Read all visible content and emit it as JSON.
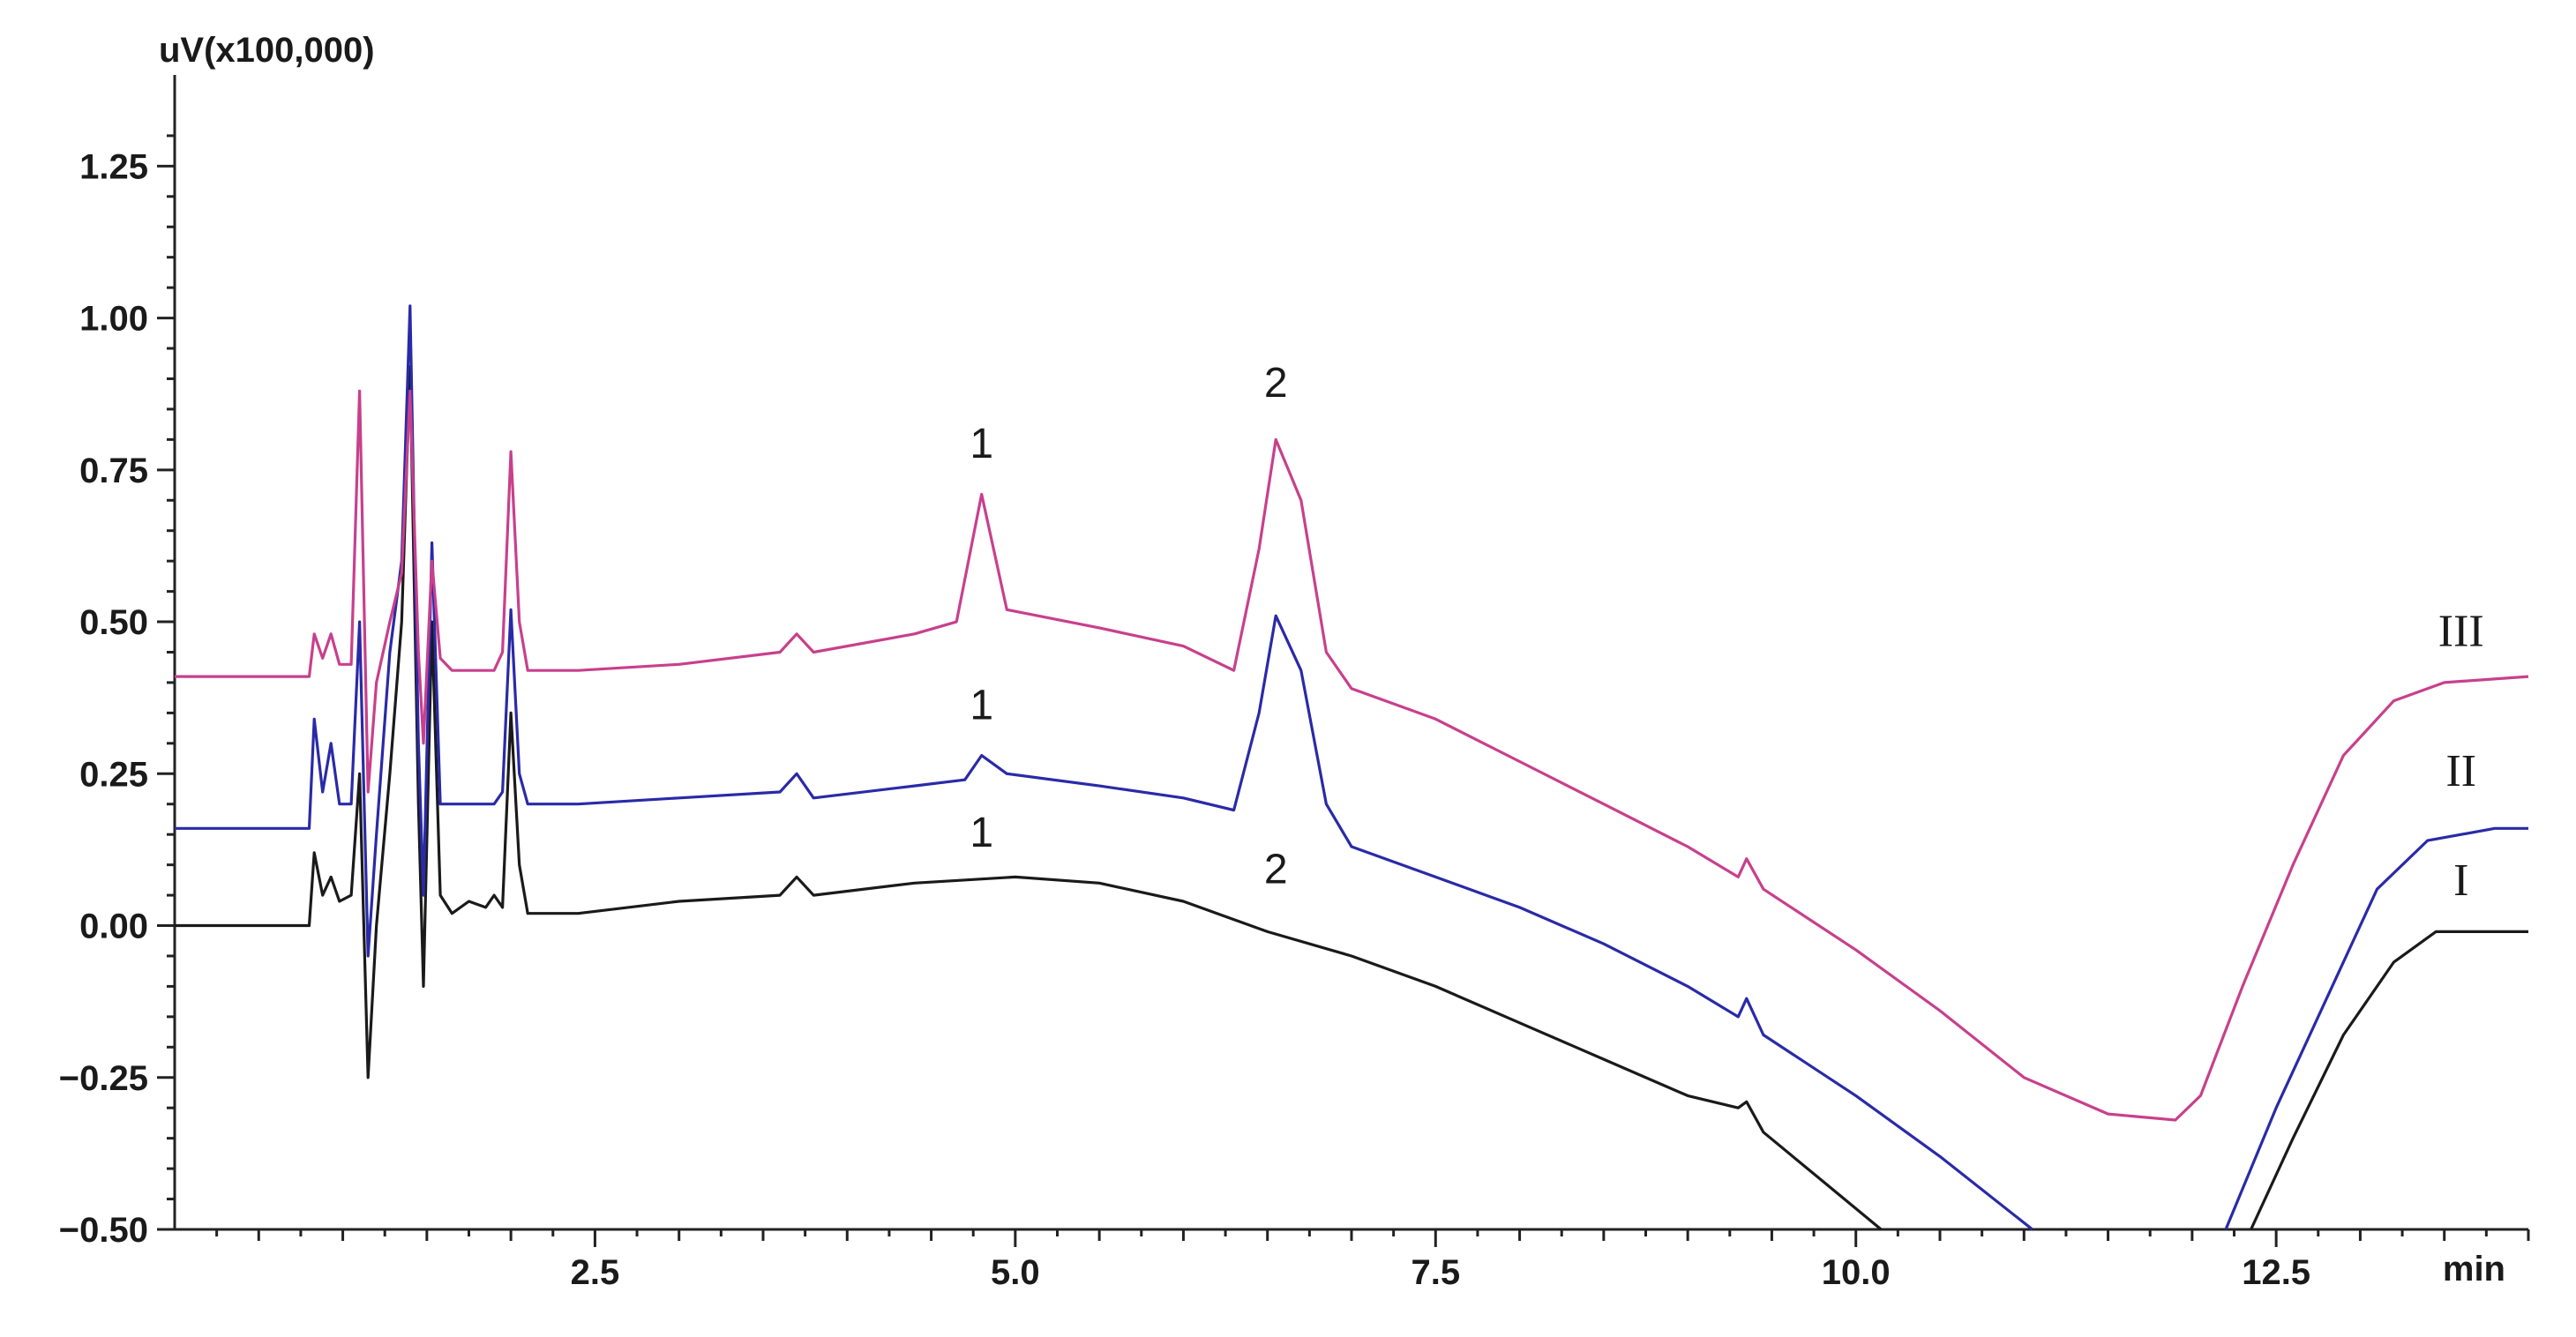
{
  "chart_data": {
    "type": "line",
    "title": "",
    "ylabel": "uV(x100,000)",
    "xlabel": "min",
    "xlim": [
      0,
      14.0
    ],
    "ylim": [
      -0.5,
      1.4
    ],
    "x_ticks": [
      2.5,
      5.0,
      7.5,
      10.0,
      12.5
    ],
    "x_tick_labels": [
      "2.5",
      "5.0",
      "7.5",
      "10.0",
      "12.5"
    ],
    "y_ticks": [
      1.25,
      1.0,
      0.75,
      0.5,
      0.25,
      0.0,
      -0.25,
      -0.5
    ],
    "y_tick_labels": [
      "1.25",
      "1.00",
      "0.75",
      "0.50",
      "0.25",
      "0.00",
      "−0.25",
      "−0.50"
    ],
    "grid": false,
    "series": [
      {
        "name": "I",
        "color": "#1a1a1a",
        "points": [
          [
            0.0,
            0.0
          ],
          [
            0.8,
            0.0
          ],
          [
            0.83,
            0.12
          ],
          [
            0.88,
            0.05
          ],
          [
            0.93,
            0.08
          ],
          [
            0.98,
            0.04
          ],
          [
            1.05,
            0.05
          ],
          [
            1.1,
            0.25
          ],
          [
            1.15,
            -0.25
          ],
          [
            1.2,
            0.0
          ],
          [
            1.28,
            0.25
          ],
          [
            1.35,
            0.5
          ],
          [
            1.4,
            0.92
          ],
          [
            1.45,
            0.2
          ],
          [
            1.48,
            -0.1
          ],
          [
            1.53,
            0.5
          ],
          [
            1.58,
            0.05
          ],
          [
            1.65,
            0.02
          ],
          [
            1.75,
            0.04
          ],
          [
            1.85,
            0.03
          ],
          [
            1.9,
            0.05
          ],
          [
            1.95,
            0.03
          ],
          [
            2.0,
            0.35
          ],
          [
            2.05,
            0.1
          ],
          [
            2.1,
            0.02
          ],
          [
            2.4,
            0.02
          ],
          [
            3.0,
            0.04
          ],
          [
            3.6,
            0.05
          ],
          [
            3.7,
            0.08
          ],
          [
            3.8,
            0.05
          ],
          [
            4.4,
            0.07
          ],
          [
            5.0,
            0.08
          ],
          [
            5.5,
            0.07
          ],
          [
            6.0,
            0.04
          ],
          [
            6.5,
            -0.01
          ],
          [
            7.0,
            -0.05
          ],
          [
            7.5,
            -0.1
          ],
          [
            8.0,
            -0.16
          ],
          [
            8.5,
            -0.22
          ],
          [
            9.0,
            -0.28
          ],
          [
            9.3,
            -0.3
          ],
          [
            9.35,
            -0.29
          ],
          [
            9.45,
            -0.34
          ],
          [
            9.8,
            -0.42
          ],
          [
            10.15,
            -0.5
          ],
          null,
          [
            12.35,
            -0.5
          ],
          [
            12.6,
            -0.35
          ],
          [
            12.9,
            -0.18
          ],
          [
            13.2,
            -0.06
          ],
          [
            13.45,
            -0.01
          ],
          [
            14.0,
            -0.01
          ]
        ]
      },
      {
        "name": "II",
        "color": "#2a2aa8",
        "points": [
          [
            0.0,
            0.16
          ],
          [
            0.8,
            0.16
          ],
          [
            0.83,
            0.34
          ],
          [
            0.88,
            0.22
          ],
          [
            0.93,
            0.3
          ],
          [
            0.98,
            0.2
          ],
          [
            1.05,
            0.2
          ],
          [
            1.1,
            0.5
          ],
          [
            1.15,
            -0.05
          ],
          [
            1.2,
            0.15
          ],
          [
            1.28,
            0.45
          ],
          [
            1.35,
            0.6
          ],
          [
            1.4,
            1.02
          ],
          [
            1.45,
            0.3
          ],
          [
            1.48,
            0.05
          ],
          [
            1.53,
            0.63
          ],
          [
            1.58,
            0.2
          ],
          [
            1.65,
            0.2
          ],
          [
            1.75,
            0.2
          ],
          [
            1.85,
            0.2
          ],
          [
            1.9,
            0.2
          ],
          [
            1.95,
            0.22
          ],
          [
            2.0,
            0.52
          ],
          [
            2.05,
            0.25
          ],
          [
            2.1,
            0.2
          ],
          [
            2.4,
            0.2
          ],
          [
            3.0,
            0.21
          ],
          [
            3.6,
            0.22
          ],
          [
            3.7,
            0.25
          ],
          [
            3.8,
            0.21
          ],
          [
            4.4,
            0.23
          ],
          [
            4.7,
            0.24
          ],
          [
            4.8,
            0.28
          ],
          [
            4.95,
            0.25
          ],
          [
            5.5,
            0.23
          ],
          [
            6.0,
            0.21
          ],
          [
            6.3,
            0.19
          ],
          [
            6.45,
            0.35
          ],
          [
            6.55,
            0.51
          ],
          [
            6.7,
            0.42
          ],
          [
            6.85,
            0.2
          ],
          [
            7.0,
            0.13
          ],
          [
            7.5,
            0.08
          ],
          [
            8.0,
            0.03
          ],
          [
            8.5,
            -0.03
          ],
          [
            9.0,
            -0.1
          ],
          [
            9.3,
            -0.15
          ],
          [
            9.35,
            -0.12
          ],
          [
            9.45,
            -0.18
          ],
          [
            10.0,
            -0.28
          ],
          [
            10.5,
            -0.38
          ],
          [
            11.05,
            -0.5
          ],
          null,
          [
            12.2,
            -0.5
          ],
          [
            12.5,
            -0.3
          ],
          [
            12.8,
            -0.12
          ],
          [
            13.1,
            0.06
          ],
          [
            13.4,
            0.14
          ],
          [
            13.8,
            0.16
          ],
          [
            14.0,
            0.16
          ]
        ]
      },
      {
        "name": "III",
        "color": "#c8408c",
        "points": [
          [
            0.0,
            0.41
          ],
          [
            0.8,
            0.41
          ],
          [
            0.83,
            0.48
          ],
          [
            0.88,
            0.44
          ],
          [
            0.93,
            0.48
          ],
          [
            0.98,
            0.43
          ],
          [
            1.05,
            0.43
          ],
          [
            1.1,
            0.88
          ],
          [
            1.15,
            0.22
          ],
          [
            1.2,
            0.4
          ],
          [
            1.28,
            0.5
          ],
          [
            1.35,
            0.58
          ],
          [
            1.4,
            0.88
          ],
          [
            1.45,
            0.45
          ],
          [
            1.48,
            0.3
          ],
          [
            1.53,
            0.6
          ],
          [
            1.58,
            0.44
          ],
          [
            1.65,
            0.42
          ],
          [
            1.75,
            0.42
          ],
          [
            1.85,
            0.42
          ],
          [
            1.9,
            0.42
          ],
          [
            1.95,
            0.45
          ],
          [
            2.0,
            0.78
          ],
          [
            2.05,
            0.5
          ],
          [
            2.1,
            0.42
          ],
          [
            2.4,
            0.42
          ],
          [
            3.0,
            0.43
          ],
          [
            3.6,
            0.45
          ],
          [
            3.7,
            0.48
          ],
          [
            3.8,
            0.45
          ],
          [
            4.4,
            0.48
          ],
          [
            4.65,
            0.5
          ],
          [
            4.8,
            0.71
          ],
          [
            4.95,
            0.52
          ],
          [
            5.5,
            0.49
          ],
          [
            6.0,
            0.46
          ],
          [
            6.3,
            0.42
          ],
          [
            6.45,
            0.62
          ],
          [
            6.55,
            0.8
          ],
          [
            6.7,
            0.7
          ],
          [
            6.85,
            0.45
          ],
          [
            7.0,
            0.39
          ],
          [
            7.5,
            0.34
          ],
          [
            8.0,
            0.27
          ],
          [
            8.5,
            0.2
          ],
          [
            9.0,
            0.13
          ],
          [
            9.3,
            0.08
          ],
          [
            9.35,
            0.11
          ],
          [
            9.45,
            0.06
          ],
          [
            10.0,
            -0.04
          ],
          [
            10.5,
            -0.14
          ],
          [
            11.0,
            -0.25
          ],
          [
            11.5,
            -0.31
          ],
          [
            11.9,
            -0.32
          ],
          [
            12.05,
            -0.28
          ],
          [
            12.3,
            -0.1
          ],
          [
            12.6,
            0.1
          ],
          [
            12.9,
            0.28
          ],
          [
            13.2,
            0.37
          ],
          [
            13.5,
            0.4
          ],
          [
            14.0,
            0.41
          ]
        ]
      }
    ],
    "annotations": [
      {
        "text": "1",
        "x": 4.8,
        "y": 0.77
      },
      {
        "text": "2",
        "x": 6.55,
        "y": 0.87
      },
      {
        "text": "1",
        "x": 4.8,
        "y": 0.34
      },
      {
        "text": "1",
        "x": 4.8,
        "y": 0.13
      },
      {
        "text": "2",
        "x": 6.55,
        "y": 0.07
      },
      {
        "text": "III",
        "x": 13.6,
        "y": 0.46
      },
      {
        "text": "II",
        "x": 13.6,
        "y": 0.23
      },
      {
        "text": "I",
        "x": 13.6,
        "y": 0.05
      }
    ]
  }
}
